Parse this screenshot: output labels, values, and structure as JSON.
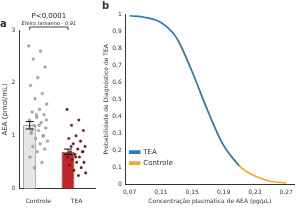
{
  "chart_data": [
    {
      "type": "bar",
      "title": "a",
      "categories": [
        "Controle",
        "TEA"
      ],
      "values": [
        1.2,
        0.7
      ],
      "errors": [
        0.07,
        0.05
      ],
      "colors": [
        "#e6e6e6",
        "#c0272d"
      ],
      "points": [
        [
          2.7,
          2.6,
          2.45,
          2.3,
          2.1,
          1.95,
          1.8,
          1.7,
          1.6,
          1.5,
          1.45,
          1.4,
          1.35,
          1.3,
          1.25,
          1.2,
          1.15,
          1.1,
          1.05,
          1.0,
          0.95,
          0.9,
          0.85,
          0.8,
          0.75,
          0.7,
          0.6,
          0.5,
          0.4,
          1.3,
          1.2,
          1.1,
          1.0,
          1.4
        ],
        [
          1.5,
          1.3,
          1.2,
          1.1,
          1.0,
          0.95,
          0.9,
          0.85,
          0.8,
          0.75,
          0.7,
          0.7,
          0.65,
          0.6,
          0.6,
          0.55,
          0.5,
          0.5,
          0.45,
          0.4,
          0.35,
          0.3,
          0.25,
          0.8,
          0.7,
          0.6
        ]
      ],
      "y_label": "AEA (pmol/mL)",
      "annotations": [
        "P<0,0001",
        "Efeito tamanho - 0,91"
      ],
      "ylim": [
        0,
        3
      ],
      "yticks": [
        0,
        1,
        2,
        3
      ],
      "grid": false
    },
    {
      "type": "line",
      "title": "b",
      "x_label": "Concentração plasmática de AEA (pg/µL)",
      "y_label": "Probabilidade de Diagnóstico de TEA",
      "series": [
        {
          "name": "TEA",
          "color": "#2c7bb6",
          "x": [
            0.07,
            0.09,
            0.11,
            0.13,
            0.15,
            0.17,
            0.19,
            0.21
          ],
          "values": [
            0.99,
            0.98,
            0.95,
            0.86,
            0.66,
            0.43,
            0.23,
            0.11
          ]
        },
        {
          "name": "Controle",
          "color": "#f0a830",
          "x": [
            0.13,
            0.15,
            0.17,
            0.19,
            0.21,
            0.23,
            0.25,
            0.27
          ],
          "values": [
            0.86,
            0.66,
            0.43,
            0.23,
            0.11,
            0.05,
            0.02,
            0.01
          ]
        }
      ],
      "xlim": [
        0.065,
        0.28
      ],
      "xticks": [
        {
          "value": 0.07,
          "label": "0,07"
        },
        {
          "value": 0.11,
          "label": "0,11"
        },
        {
          "value": 0.15,
          "label": "0,15"
        },
        {
          "value": 0.19,
          "label": "0,19"
        },
        {
          "value": 0.23,
          "label": "0,23"
        },
        {
          "value": 0.27,
          "label": "0,27"
        }
      ],
      "ylim": [
        0,
        1
      ],
      "yticks": [
        0,
        {
          "value": 0.1,
          "label": "0,1"
        },
        {
          "value": 0.2,
          "label": "0,2"
        },
        {
          "value": 0.3,
          "label": "0,3"
        },
        {
          "value": 0.4,
          "label": "0,4"
        },
        {
          "value": 0.5,
          "label": "0,5"
        },
        {
          "value": 0.6,
          "label": "0,6"
        },
        {
          "value": 0.7,
          "label": "0,7"
        },
        {
          "value": 0.8,
          "label": "0,8"
        },
        {
          "value": 0.9,
          "label": "0,9"
        },
        1
      ],
      "legend": "top-right",
      "grid": false
    }
  ]
}
